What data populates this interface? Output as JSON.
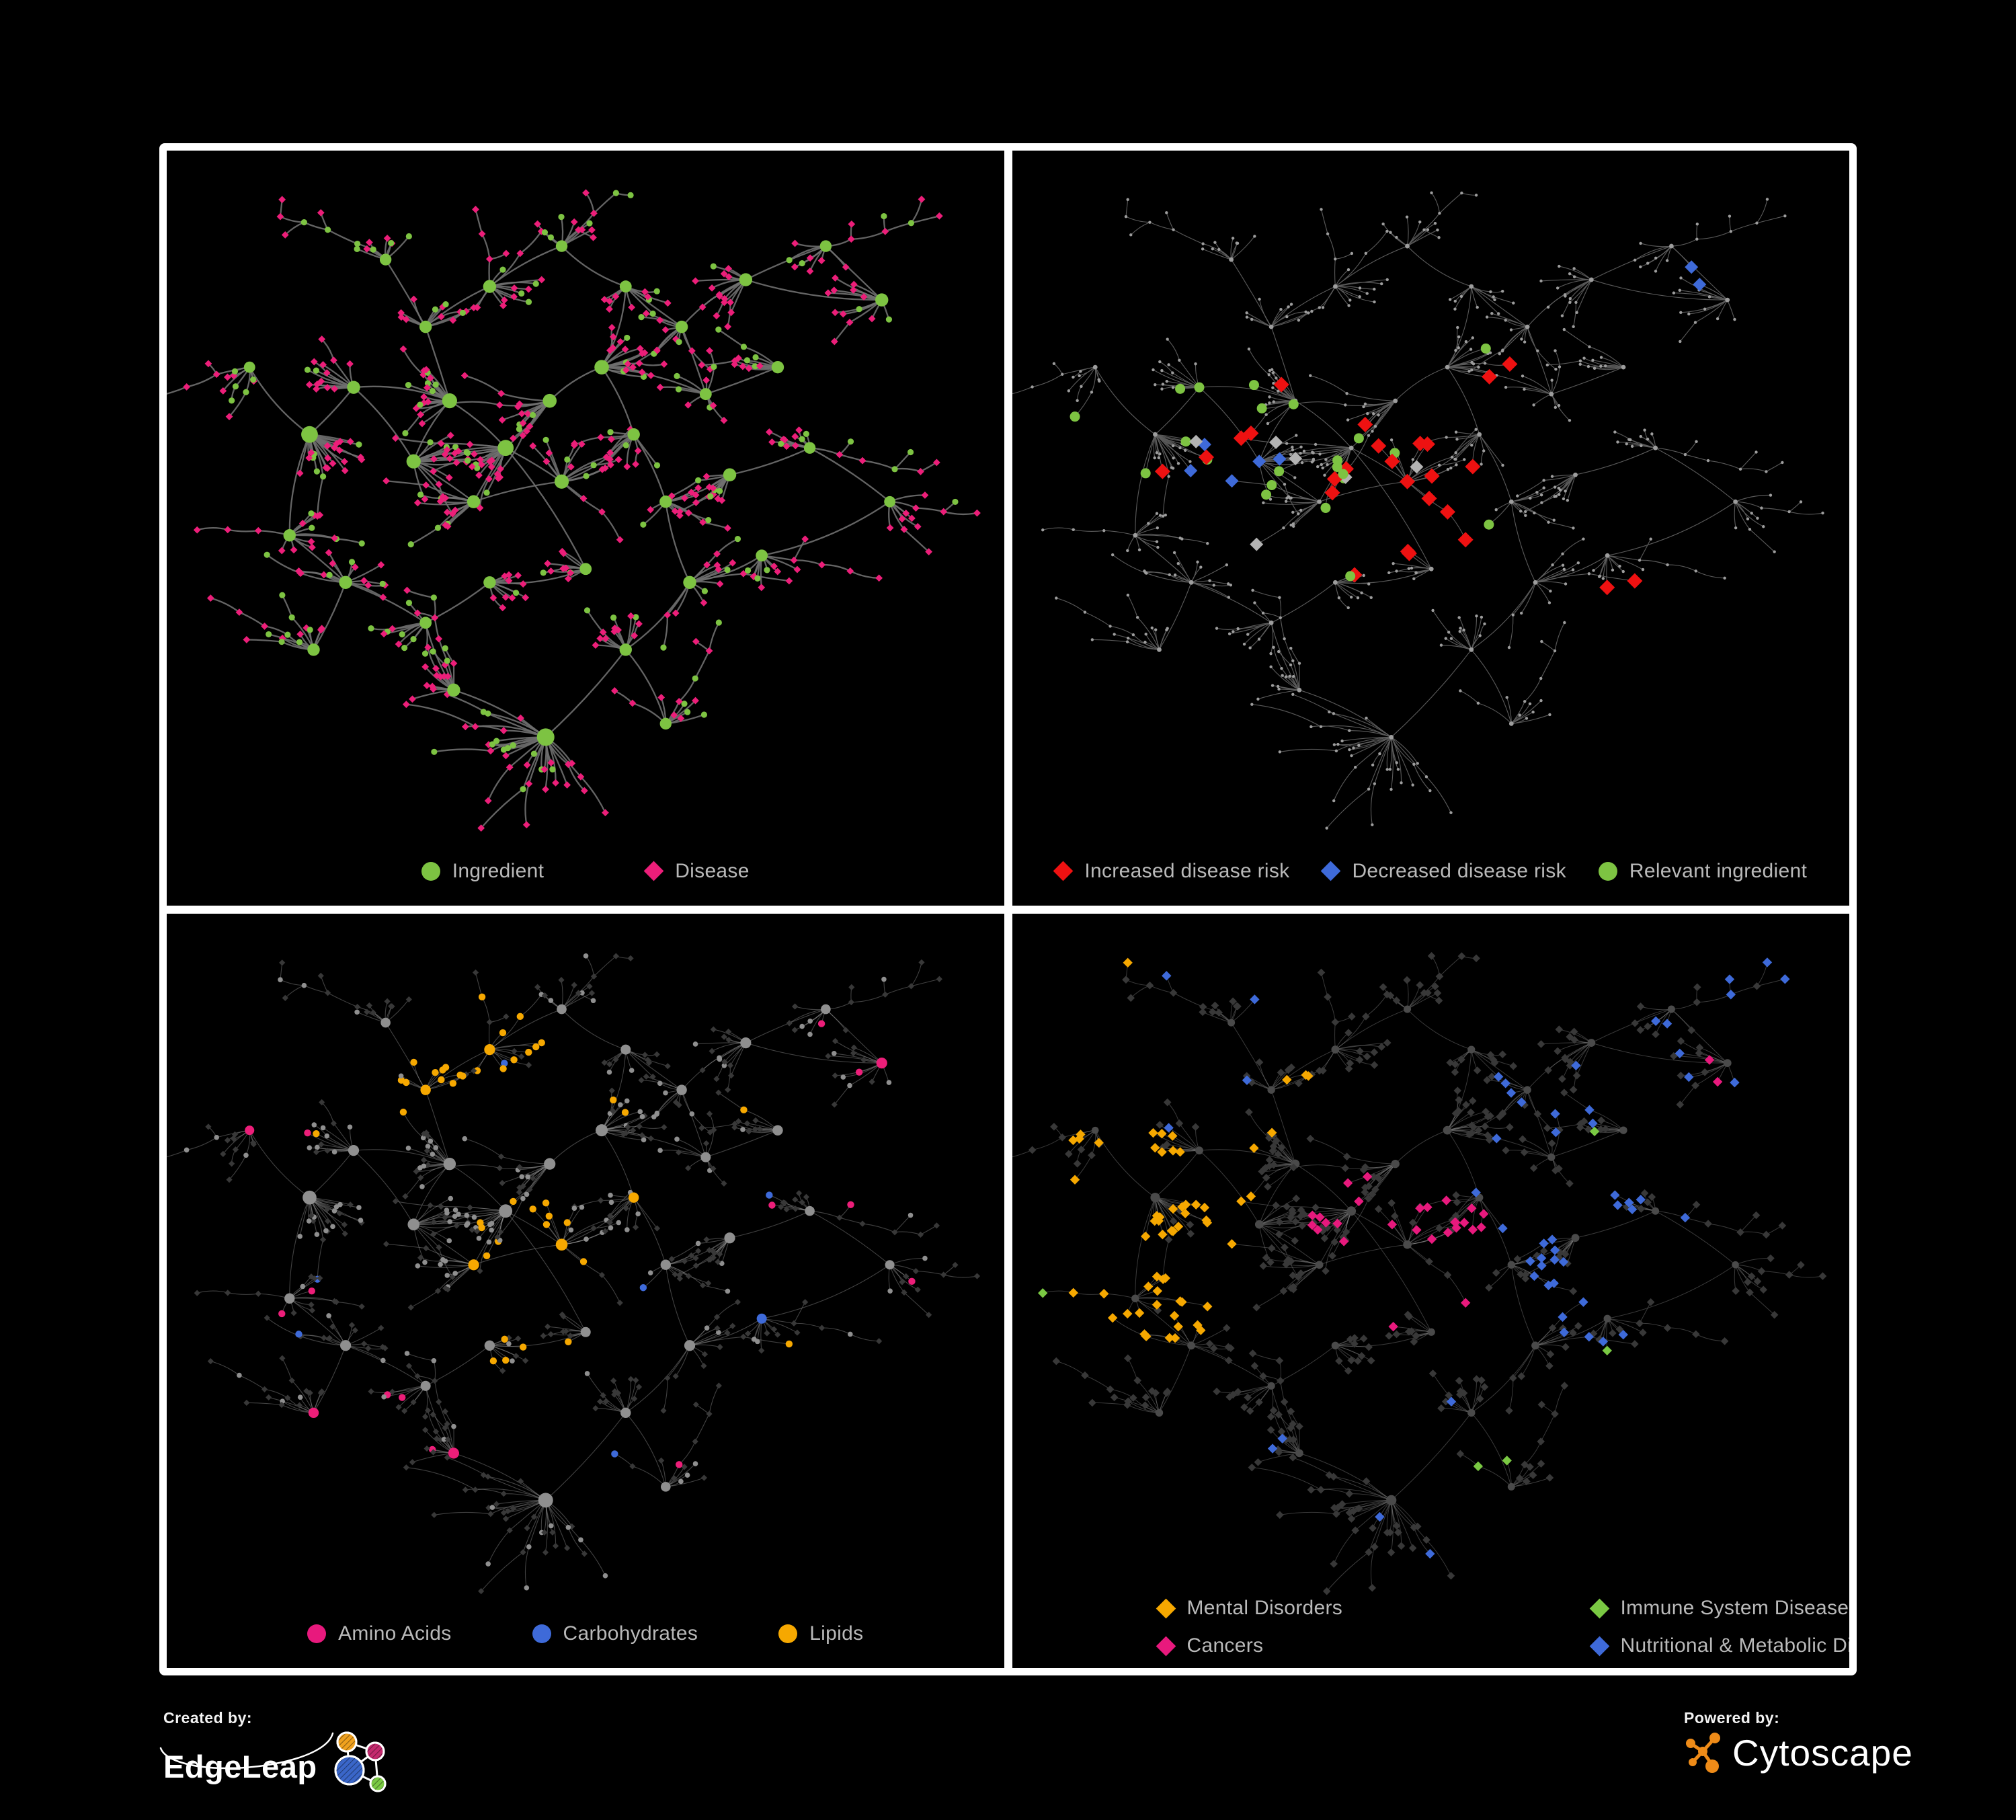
{
  "footer": {
    "created_by": "Created by:",
    "brand_left": "EdgeLeap",
    "powered_by": "Powered by:",
    "brand_right": "Cytoscape"
  },
  "colors": {
    "green": "#7dc342",
    "pink": "#ec1e79",
    "red": "#ee1111",
    "blue": "#3e6ad9",
    "orange": "#f6a800",
    "silver": "#b3b3b3",
    "gray_node": "#9d9d9d",
    "gray_circle": "#8f8f8f",
    "dark_diamond": "#383838",
    "hub_dark": "#4a4a4a",
    "legend_text": "#b9b9b9",
    "edge_light": "#6f6f6f"
  },
  "panels": [
    {
      "id": "ingredient-disease",
      "style": {
        "edge": "#6f6f6f",
        "edgeW": 2.3,
        "edgeOp": 0.9
      },
      "legend_gap": 150,
      "legend": [
        {
          "shape": "circle",
          "color": "#7dc342",
          "label": "Ingredient"
        },
        {
          "shape": "diamond",
          "color": "#ec1e79",
          "label": "Disease"
        }
      ]
    },
    {
      "id": "disease-risk",
      "style": {
        "edge": "#5d5d5d",
        "edgeW": 1.15,
        "edgeOp": 0.95
      },
      "legend_gap": 48,
      "legend": [
        {
          "shape": "diamond",
          "color": "#ee1111",
          "label": "Increased disease risk"
        },
        {
          "shape": "diamond",
          "color": "#3e6ad9",
          "label": "Decreased disease risk"
        },
        {
          "shape": "circle",
          "color": "#7dc342",
          "label": "Relevant ingredient"
        }
      ]
    },
    {
      "id": "compound-classes",
      "style": {
        "edge": "#9a9a9a",
        "edgeW": 1.1,
        "edgeOp": 0.42
      },
      "legend_gap": 120,
      "legend": [
        {
          "shape": "circle",
          "color": "#e8197d",
          "label": "Amino Acids"
        },
        {
          "shape": "circle",
          "color": "#3e6ad9",
          "label": "Carbohydrates"
        },
        {
          "shape": "circle",
          "color": "#f6a800",
          "label": "Lipids"
        }
      ]
    },
    {
      "id": "disease-classes",
      "style": {
        "edge": "#8a8a8a",
        "edgeW": 1.0,
        "edgeOp": 0.42
      },
      "legend_two_col": true,
      "legend": [
        {
          "shape": "diamond",
          "color": "#f6a800",
          "label": "Mental Disorders"
        },
        {
          "shape": "diamond",
          "color": "#7ac943",
          "label": "Immune System Diseases"
        },
        {
          "shape": "diamond",
          "color": "#e8197d",
          "label": "Cancers"
        },
        {
          "shape": "diamond",
          "color": "#3e6ad9",
          "label": "Nutritional & Metabolic Diseases"
        }
      ]
    }
  ],
  "network": {
    "seed": 1337,
    "clusters": [
      [
        0.155,
        0.4,
        22,
        0.065
      ],
      [
        0.21,
        0.33,
        12,
        0.05
      ],
      [
        0.285,
        0.44,
        15,
        0.055
      ],
      [
        0.33,
        0.35,
        17,
        0.055
      ],
      [
        0.4,
        0.42,
        20,
        0.06
      ],
      [
        0.455,
        0.35,
        14,
        0.05
      ],
      [
        0.36,
        0.5,
        12,
        0.05
      ],
      [
        0.47,
        0.47,
        15,
        0.055
      ],
      [
        0.52,
        0.3,
        16,
        0.05
      ],
      [
        0.56,
        0.4,
        10,
        0.045
      ],
      [
        0.3,
        0.24,
        10,
        0.045
      ],
      [
        0.38,
        0.18,
        12,
        0.05,
        -100,
        3
      ],
      [
        0.25,
        0.14,
        8,
        0.04,
        -140,
        4
      ],
      [
        0.47,
        0.12,
        8,
        0.04,
        -60,
        3
      ],
      [
        0.55,
        0.18,
        9,
        0.042
      ],
      [
        0.62,
        0.24,
        10,
        0.045
      ],
      [
        0.7,
        0.17,
        12,
        0.045
      ],
      [
        0.8,
        0.12,
        8,
        0.04,
        -20,
        4
      ],
      [
        0.87,
        0.2,
        12,
        0.05
      ],
      [
        0.65,
        0.34,
        9,
        0.042
      ],
      [
        0.74,
        0.3,
        10,
        0.045
      ],
      [
        0.6,
        0.5,
        10,
        0.045
      ],
      [
        0.68,
        0.46,
        12,
        0.05
      ],
      [
        0.78,
        0.42,
        8,
        0.04,
        10,
        4
      ],
      [
        0.13,
        0.55,
        10,
        0.05,
        180,
        3
      ],
      [
        0.2,
        0.62,
        12,
        0.05
      ],
      [
        0.16,
        0.72,
        10,
        0.045,
        220,
        4
      ],
      [
        0.3,
        0.68,
        9,
        0.045
      ],
      [
        0.38,
        0.62,
        10,
        0.045
      ],
      [
        0.335,
        0.78,
        12,
        0.05,
        250,
        4
      ],
      [
        0.45,
        0.85,
        26,
        0.07
      ],
      [
        0.55,
        0.72,
        10,
        0.045
      ],
      [
        0.63,
        0.62,
        12,
        0.05
      ],
      [
        0.72,
        0.58,
        9,
        0.042,
        0,
        4
      ],
      [
        0.6,
        0.83,
        8,
        0.04,
        300,
        4
      ],
      [
        0.08,
        0.3,
        7,
        0.04,
        160,
        3
      ],
      [
        0.88,
        0.5,
        7,
        0.04,
        20,
        3
      ],
      [
        0.5,
        0.6,
        9,
        0.04
      ]
    ],
    "extra_links": [
      [
        0,
        1
      ],
      [
        1,
        3
      ],
      [
        2,
        3
      ],
      [
        3,
        4
      ],
      [
        4,
        5
      ],
      [
        5,
        8
      ],
      [
        4,
        6
      ],
      [
        6,
        7
      ],
      [
        7,
        9
      ],
      [
        8,
        9
      ],
      [
        2,
        6
      ],
      [
        4,
        7
      ],
      [
        8,
        14
      ],
      [
        15,
        16
      ],
      [
        19,
        20
      ],
      [
        21,
        22
      ],
      [
        22,
        23
      ],
      [
        27,
        28
      ],
      [
        28,
        37
      ],
      [
        31,
        32
      ],
      [
        32,
        33
      ],
      [
        8,
        19
      ],
      [
        9,
        21
      ],
      [
        25,
        26
      ],
      [
        0,
        24
      ],
      [
        29,
        30
      ],
      [
        4,
        37
      ],
      [
        16,
        18
      ],
      [
        33,
        36
      ]
    ],
    "p1": {
      "green_leaf_p": 0.24
    },
    "p2": {
      "red": [
        [
          0.317,
          0.318
        ],
        [
          0.245,
          0.404
        ],
        [
          0.268,
          0.395
        ],
        [
          0.214,
          0.43
        ],
        [
          0.156,
          0.458
        ],
        [
          0.384,
          0.463
        ],
        [
          0.421,
          0.454
        ],
        [
          0.419,
          0.505
        ],
        [
          0.437,
          0.51
        ],
        [
          0.411,
          0.384
        ],
        [
          0.47,
          0.4
        ],
        [
          0.5,
          0.43
        ],
        [
          0.46,
          0.46
        ],
        [
          0.52,
          0.49
        ],
        [
          0.44,
          0.55
        ],
        [
          0.4,
          0.57
        ],
        [
          0.48,
          0.58
        ],
        [
          0.52,
          0.56
        ],
        [
          0.56,
          0.47
        ],
        [
          0.6,
          0.3
        ],
        [
          0.55,
          0.35
        ],
        [
          0.46,
          0.52
        ],
        [
          0.72,
          0.63
        ],
        [
          0.76,
          0.68
        ],
        [
          0.5,
          0.52
        ],
        [
          0.42,
          0.44
        ]
      ],
      "blue": [
        [
          0.236,
          0.418
        ],
        [
          0.27,
          0.414
        ],
        [
          0.295,
          0.436
        ],
        [
          0.239,
          0.474
        ],
        [
          0.227,
          0.49
        ],
        [
          0.845,
          0.158
        ],
        [
          0.868,
          0.152
        ]
      ],
      "silver": [
        [
          0.211,
          0.396
        ],
        [
          0.277,
          0.435
        ],
        [
          0.271,
          0.546
        ],
        [
          0.33,
          0.44
        ],
        [
          0.4,
          0.475
        ],
        [
          0.47,
          0.455
        ]
      ],
      "green": [
        [
          0.237,
          0.337
        ],
        [
          0.209,
          0.348
        ],
        [
          0.265,
          0.334
        ],
        [
          0.25,
          0.385
        ],
        [
          0.202,
          0.417
        ],
        [
          0.246,
          0.442
        ],
        [
          0.26,
          0.452
        ],
        [
          0.262,
          0.469
        ],
        [
          0.32,
          0.449
        ],
        [
          0.34,
          0.366
        ],
        [
          0.131,
          0.486
        ],
        [
          0.369,
          0.516
        ],
        [
          0.385,
          0.43
        ],
        [
          0.4,
          0.44
        ],
        [
          0.42,
          0.42
        ],
        [
          0.43,
          0.46
        ],
        [
          0.45,
          0.43
        ],
        [
          0.4,
          0.49
        ],
        [
          0.57,
          0.255
        ],
        [
          0.58,
          0.55
        ],
        [
          0.085,
          0.37
        ],
        [
          0.38,
          0.56
        ]
      ]
    },
    "p3": {
      "orange": [
        [
          0.26,
          0.1,
          0.5,
          0.3,
          0.55
        ],
        [
          0.36,
          0.4,
          0.5,
          0.52,
          0.45
        ],
        [
          0.38,
          0.58,
          0.48,
          0.68,
          0.35
        ]
      ],
      "blue": [
        [
          0.27,
          0.2,
          0.42,
          0.3,
          0.18
        ],
        [
          0.7,
          0.52,
          0.76,
          0.6,
          0.5
        ]
      ],
      "core": [
        0.1,
        0.25,
        0.6,
        0.55
      ],
      "core_circle_p": 0.5,
      "outer_circle_p": 0.18
    },
    "p4": {
      "orange": [
        [
          0.04,
          0.3,
          0.28,
          0.62,
          0.7
        ],
        [
          0.24,
          0.18,
          0.4,
          0.34,
          0.15
        ],
        [
          0.1,
          0.04,
          0.4,
          0.14,
          0.08
        ]
      ],
      "pink": [
        [
          0.34,
          0.36,
          0.58,
          0.6,
          0.45
        ],
        [
          0.84,
          0.12,
          0.97,
          0.26,
          0.6
        ]
      ],
      "blue": [
        [
          0.55,
          0.36,
          0.82,
          0.64,
          0.35
        ],
        [
          0.55,
          0.04,
          0.97,
          0.32,
          0.22
        ],
        [
          0.3,
          0.7,
          0.62,
          0.95,
          0.12
        ],
        [
          0.04,
          0.04,
          0.3,
          0.3,
          0.08
        ]
      ],
      "green_p": 0.015
    }
  }
}
